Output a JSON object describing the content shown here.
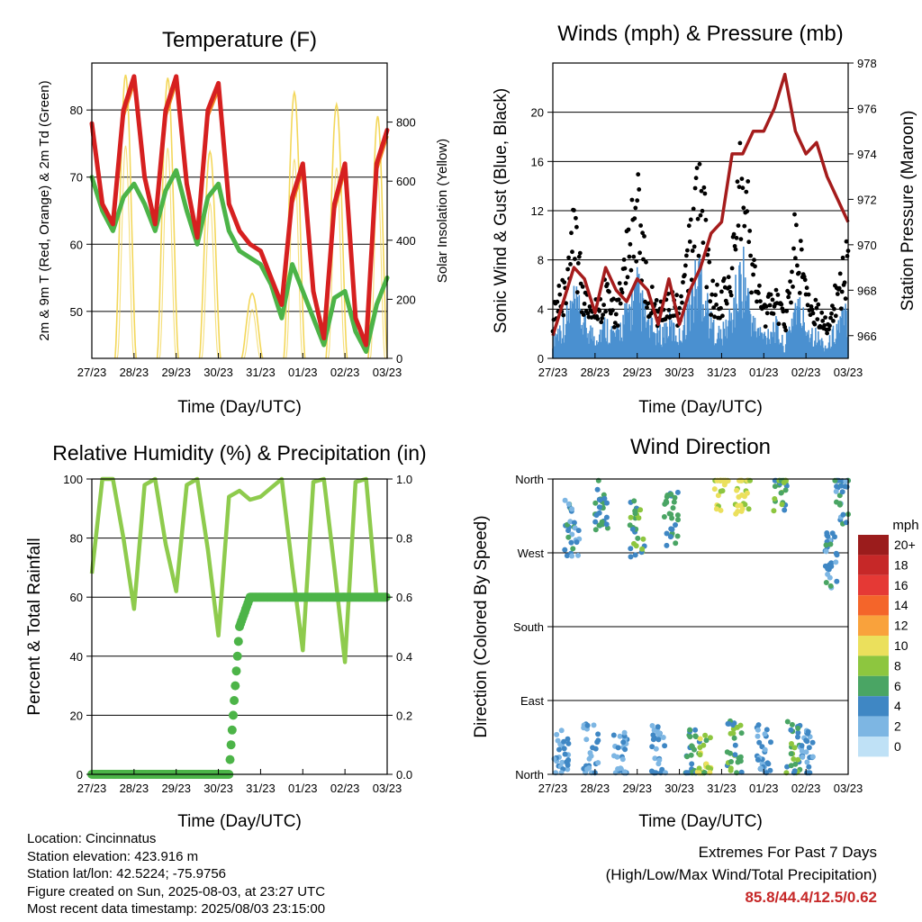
{
  "charts": {
    "temperature": {
      "title": "Temperature (F)",
      "xlabel": "Time (Day/UTC)",
      "ylabel_left": "2m & 9m T (Red, Orange) & 2m Td (Green)",
      "ylabel_right": "Solar Insolation (Yellow)",
      "left_ticks": [
        "50",
        "60",
        "70",
        "80"
      ],
      "right_ticks": [
        "0",
        "200",
        "400",
        "600",
        "800"
      ]
    },
    "winds": {
      "title": "Winds (mph) & Pressure (mb)",
      "xlabel": "Time (Day/UTC)",
      "ylabel_left": "Sonic Wind & Gust (Blue, Black)",
      "ylabel_right": "Station Pressure (Maroon)",
      "left_ticks": [
        "0",
        "4",
        "8",
        "12",
        "16",
        "20"
      ],
      "right_ticks": [
        "966",
        "968",
        "970",
        "972",
        "974",
        "976",
        "978"
      ]
    },
    "humidity": {
      "title": "Relative Humidity (%) & Precipitation (in)",
      "xlabel": "Time (Day/UTC)",
      "ylabel_left": "Percent & Total Rainfall",
      "left_ticks": [
        "0",
        "20",
        "40",
        "60",
        "80",
        "100"
      ],
      "right_ticks": [
        "0.0",
        "0.2",
        "0.4",
        "0.6",
        "0.8",
        "1.0"
      ]
    },
    "direction": {
      "title": "Wind Direction",
      "xlabel": "Time (Day/UTC)",
      "ylabel_left": "Direction (Colored By Speed)",
      "dir_ticks": [
        "North",
        "East",
        "South",
        "West",
        "North"
      ],
      "legend_title": "mph",
      "legend_labels": [
        "20+",
        "18",
        "16",
        "14",
        "12",
        "10",
        "8",
        "6",
        "4",
        "2",
        "0"
      ],
      "legend_colors": [
        "#9b1c1c",
        "#c62828",
        "#e53935",
        "#f4652a",
        "#f9a23c",
        "#ebe05c",
        "#8dc63f",
        "#4aa564",
        "#3f87c4",
        "#7db6e3",
        "#bfe1f6"
      ]
    }
  },
  "x_tick_labels": [
    "27/23",
    "28/23",
    "29/23",
    "30/23",
    "31/23",
    "01/23",
    "02/23",
    "03/23"
  ],
  "chart_data": [
    {
      "type": "line",
      "title": "Temperature (F)",
      "xlabel": "Time (Day/UTC)",
      "ylabel": "2m & 9m T (Red, Orange) & 2m Td (Green)",
      "y2label": "Solar Insolation (Yellow)",
      "ylim": [
        43,
        87
      ],
      "y2lim": [
        0,
        1000
      ],
      "x": [
        0,
        0.25,
        0.5,
        0.75,
        1,
        1.25,
        1.5,
        1.75,
        2,
        2.25,
        2.5,
        2.75,
        3,
        3.25,
        3.5,
        3.75,
        4,
        4.25,
        4.5,
        4.75,
        5,
        5.25,
        5.5,
        5.75,
        6,
        6.25,
        6.5,
        6.75,
        7
      ],
      "series": [
        {
          "name": "2m T",
          "color": "#d62020",
          "values": [
            78,
            66,
            63,
            80,
            85,
            70,
            63,
            80,
            85,
            69,
            61,
            80,
            84,
            66,
            62,
            60,
            59,
            55,
            51,
            67,
            72,
            53,
            46,
            66,
            72,
            49,
            45,
            72,
            77
          ]
        },
        {
          "name": "9m T",
          "color": "#f08a24",
          "values": [
            77,
            66,
            63,
            79,
            84,
            70,
            63,
            79,
            84,
            69,
            61,
            79,
            83,
            66,
            62,
            60,
            59,
            55,
            51,
            66,
            71,
            53,
            46,
            65,
            71,
            49,
            45,
            71,
            76
          ]
        },
        {
          "name": "2m Td",
          "color": "#4cb448",
          "values": [
            70,
            65,
            62,
            67,
            69,
            66,
            62,
            68,
            71,
            65,
            60,
            67,
            69,
            62,
            59,
            58,
            57,
            54,
            49,
            57,
            53,
            49,
            45,
            52,
            53,
            47,
            44,
            51,
            55
          ]
        }
      ],
      "insolation": {
        "name": "Solar Insolation",
        "color": "#f3d75a",
        "days": [
          {
            "start": 0.55,
            "end": 1.05,
            "peak": 960
          },
          {
            "start": 1.55,
            "end": 2.05,
            "peak": 950
          },
          {
            "start": 2.55,
            "end": 3.05,
            "peak": 700
          },
          {
            "start": 3.55,
            "end": 4.05,
            "peak": 220
          },
          {
            "start": 4.55,
            "end": 5.05,
            "peak": 900
          },
          {
            "start": 5.55,
            "end": 6.05,
            "peak": 860
          },
          {
            "start": 6.55,
            "end": 7.0,
            "peak": 820
          }
        ]
      }
    },
    {
      "type": "scatter",
      "title": "Winds (mph) & Pressure (mb)",
      "xlabel": "Time (Day/UTC)",
      "ylabel": "Sonic Wind & Gust (Blue, Black)",
      "y2label": "Station Pressure (Maroon)",
      "ylim": [
        0,
        24
      ],
      "y2lim": [
        965,
        978
      ],
      "x": [
        0,
        0.25,
        0.5,
        0.75,
        1,
        1.25,
        1.5,
        1.75,
        2,
        2.25,
        2.5,
        2.75,
        3,
        3.25,
        3.5,
        3.75,
        4,
        4.25,
        4.5,
        4.75,
        5,
        5.25,
        5.5,
        5.75,
        6,
        6.25,
        6.5,
        6.75,
        7
      ],
      "series": [
        {
          "name": "Sonic Wind",
          "color": "#4a90d0",
          "values": [
            2,
            3,
            5,
            3,
            2,
            3,
            2,
            4,
            6,
            3,
            2,
            3,
            2,
            5,
            8,
            3,
            2,
            4,
            8,
            3,
            2,
            3,
            1,
            5,
            3,
            2,
            1,
            3,
            4
          ]
        },
        {
          "name": "Gust",
          "color": "#000000",
          "values": [
            4,
            6,
            11,
            5,
            4,
            6,
            4,
            9,
            14,
            6,
            4,
            6,
            4,
            10,
            16,
            6,
            5,
            8,
            18,
            8,
            4,
            6,
            3,
            11,
            7,
            4,
            3,
            6,
            9
          ]
        },
        {
          "name": "Station Pressure",
          "color": "#a51c1c",
          "values": [
            966,
            967.5,
            969,
            968.5,
            967,
            969,
            968,
            967.5,
            968.5,
            968,
            966.5,
            968.5,
            966.5,
            968,
            969,
            970.5,
            971,
            974,
            974,
            975,
            975,
            976,
            977.5,
            975,
            974,
            974.5,
            973,
            972,
            971
          ]
        }
      ]
    },
    {
      "type": "line",
      "title": "Relative Humidity (%) & Precipitation (in)",
      "xlabel": "Time (Day/UTC)",
      "ylabel": "Percent & Total Rainfall",
      "ylim": [
        0,
        100
      ],
      "y2lim": [
        0,
        1.0
      ],
      "x": [
        0,
        0.25,
        0.5,
        0.75,
        1,
        1.25,
        1.5,
        1.75,
        2,
        2.25,
        2.5,
        2.75,
        3,
        3.25,
        3.5,
        3.75,
        4,
        4.25,
        4.5,
        4.75,
        5,
        5.25,
        5.5,
        5.75,
        6,
        6.25,
        6.5,
        6.75,
        7
      ],
      "series": [
        {
          "name": "Relative Humidity",
          "color": "#8ecb4d",
          "values": [
            68,
            100,
            100,
            80,
            56,
            98,
            100,
            78,
            62,
            98,
            100,
            76,
            47,
            94,
            96,
            93,
            94,
            97,
            100,
            70,
            42,
            99,
            100,
            70,
            38,
            99,
            100,
            60,
            60
          ]
        },
        {
          "name": "Total Rainfall",
          "color": "#4cb448",
          "values": [
            0,
            0,
            0,
            0,
            0,
            0,
            0,
            0,
            0,
            0,
            0,
            0,
            0,
            0,
            0.5,
            0.6,
            0.6,
            0.6,
            0.6,
            0.6,
            0.6,
            0.6,
            0.6,
            0.6,
            0.6,
            0.6,
            0.6,
            0.6,
            0.6
          ]
        }
      ]
    },
    {
      "type": "scatter",
      "title": "Wind Direction",
      "xlabel": "Time (Day/UTC)",
      "ylabel": "Direction (Colored By Speed)",
      "ylim": [
        0,
        360
      ],
      "colorbar": "mph",
      "clusters": [
        {
          "x": 0.2,
          "dir": 25,
          "speed": 3
        },
        {
          "x": 0.45,
          "dir": 300,
          "speed": 4
        },
        {
          "x": 0.9,
          "dir": 30,
          "speed": 3
        },
        {
          "x": 1.15,
          "dir": 330,
          "speed": 5
        },
        {
          "x": 1.6,
          "dir": 20,
          "speed": 3
        },
        {
          "x": 2.0,
          "dir": 300,
          "speed": 6
        },
        {
          "x": 2.5,
          "dir": 25,
          "speed": 3
        },
        {
          "x": 2.8,
          "dir": 310,
          "speed": 5
        },
        {
          "x": 3.3,
          "dir": 20,
          "speed": 6
        },
        {
          "x": 3.6,
          "dir": 15,
          "speed": 8
        },
        {
          "x": 4.0,
          "dir": 355,
          "speed": 9
        },
        {
          "x": 4.3,
          "dir": 30,
          "speed": 6
        },
        {
          "x": 4.5,
          "dir": 350,
          "speed": 9
        },
        {
          "x": 5.0,
          "dir": 30,
          "speed": 3
        },
        {
          "x": 5.4,
          "dir": 355,
          "speed": 6
        },
        {
          "x": 5.7,
          "dir": 30,
          "speed": 6
        },
        {
          "x": 6.0,
          "dir": 20,
          "speed": 3
        },
        {
          "x": 6.6,
          "dir": 260,
          "speed": 4
        },
        {
          "x": 6.85,
          "dir": 340,
          "speed": 4
        }
      ]
    }
  ],
  "info": {
    "location": "Location: Cincinnatus",
    "elevation": "Station elevation: 423.916 m",
    "latlon": "Station lat/lon: 42.5224; -75.9756",
    "created": "Figure created on Sun, 2025-08-03, at 23:27 UTC",
    "recent": "Most recent data timestamp: 2025/08/03 23:15:00"
  },
  "extremes": {
    "title": "Extremes For Past 7 Days",
    "subtitle": "(High/Low/Max Wind/Total Precipitation)",
    "values": "85.8/44.4/12.5/0.62"
  }
}
